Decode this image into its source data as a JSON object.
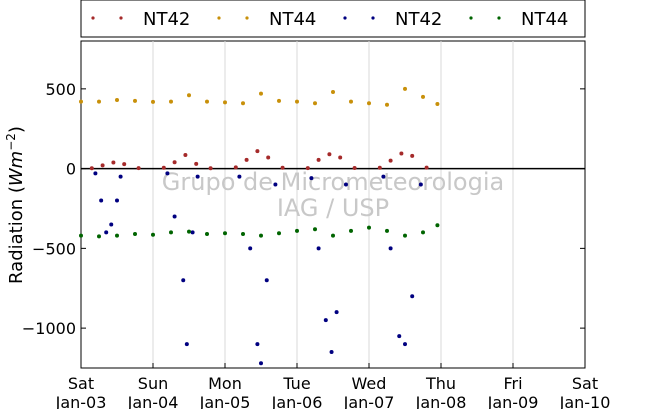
{
  "chart_data": {
    "type": "scatter",
    "title": "",
    "ylabel": "Radiation (Wm⁻²)",
    "ylabel_prefix": "Radiation (",
    "ylabel_unit": "Wm",
    "ylabel_exp": "−2",
    "ylabel_suffix": ")",
    "xlabel": "",
    "x_unit": "days",
    "xlim": [
      0,
      7
    ],
    "ylim": [
      -1250,
      800
    ],
    "yticks": [
      500,
      0,
      -500,
      -1000
    ],
    "ytick_labels": [
      "500",
      "0",
      "−500",
      "−1000"
    ],
    "xticks": [
      {
        "x": 0,
        "day": "Sat",
        "date": "Jan-03"
      },
      {
        "x": 1,
        "day": "Sun",
        "date": "Jan-04"
      },
      {
        "x": 2,
        "day": "Mon",
        "date": "Jan-05"
      },
      {
        "x": 3,
        "day": "Tue",
        "date": "Jan-06"
      },
      {
        "x": 4,
        "day": "Wed",
        "date": "Jan-07"
      },
      {
        "x": 5,
        "day": "Thu",
        "date": "Jan-08"
      },
      {
        "x": 6,
        "day": "Fri",
        "date": "Jan-09"
      },
      {
        "x": 7,
        "day": "Sat",
        "date": "Jan-10"
      }
    ],
    "grid": "vertical",
    "zero_line": true,
    "legend_position": "top",
    "watermark": [
      "Grupo de Micrometeorologia",
      "IAG / USP"
    ],
    "series": [
      {
        "name": "NT42",
        "color": "#a52a2a",
        "legend": true,
        "points": [
          [
            0.15,
            2
          ],
          [
            0.3,
            20
          ],
          [
            0.45,
            38
          ],
          [
            0.6,
            28
          ],
          [
            0.8,
            3
          ],
          [
            1.15,
            5
          ],
          [
            1.3,
            40
          ],
          [
            1.45,
            85
          ],
          [
            1.6,
            30
          ],
          [
            1.8,
            2
          ],
          [
            2.15,
            8
          ],
          [
            2.3,
            55
          ],
          [
            2.45,
            110
          ],
          [
            2.6,
            70
          ],
          [
            2.8,
            5
          ],
          [
            3.15,
            3
          ],
          [
            3.3,
            55
          ],
          [
            3.45,
            90
          ],
          [
            3.6,
            70
          ],
          [
            3.8,
            4
          ],
          [
            4.15,
            5
          ],
          [
            4.3,
            50
          ],
          [
            4.45,
            95
          ],
          [
            4.6,
            80
          ],
          [
            4.8,
            6
          ]
        ]
      },
      {
        "name": "NT44",
        "color": "#c8900a",
        "legend": true,
        "points": [
          [
            0,
            420
          ],
          [
            0.25,
            420
          ],
          [
            0.5,
            430
          ],
          [
            0.75,
            425
          ],
          [
            1,
            418
          ],
          [
            1.25,
            420
          ],
          [
            1.5,
            460
          ],
          [
            1.75,
            420
          ],
          [
            2,
            415
          ],
          [
            2.25,
            410
          ],
          [
            2.5,
            470
          ],
          [
            2.75,
            425
          ],
          [
            3,
            420
          ],
          [
            3.25,
            410
          ],
          [
            3.5,
            480
          ],
          [
            3.75,
            420
          ],
          [
            4,
            410
          ],
          [
            4.25,
            400
          ],
          [
            4.5,
            500
          ],
          [
            4.75,
            450
          ],
          [
            4.95,
            405
          ]
        ]
      },
      {
        "name": "NT42",
        "color": "#000080",
        "legend": true,
        "points": [
          [
            0.2,
            -30
          ],
          [
            0.28,
            -200
          ],
          [
            0.35,
            -400
          ],
          [
            0.42,
            -350
          ],
          [
            0.5,
            -200
          ],
          [
            0.55,
            -50
          ],
          [
            1.2,
            -30
          ],
          [
            1.3,
            -300
          ],
          [
            1.42,
            -700
          ],
          [
            1.47,
            -1100
          ],
          [
            1.55,
            -400
          ],
          [
            1.62,
            -50
          ],
          [
            2.2,
            -50
          ],
          [
            2.35,
            -500
          ],
          [
            2.45,
            -1100
          ],
          [
            2.5,
            -1220
          ],
          [
            2.58,
            -700
          ],
          [
            2.7,
            -100
          ],
          [
            3.2,
            -60
          ],
          [
            3.3,
            -500
          ],
          [
            3.4,
            -950
          ],
          [
            3.48,
            -1150
          ],
          [
            3.55,
            -900
          ],
          [
            3.68,
            -100
          ],
          [
            4.2,
            -50
          ],
          [
            4.3,
            -500
          ],
          [
            4.42,
            -1050
          ],
          [
            4.5,
            -1100
          ],
          [
            4.6,
            -800
          ],
          [
            4.72,
            -100
          ]
        ]
      },
      {
        "name": "NT44",
        "color": "#006400",
        "legend": true,
        "points": [
          [
            0,
            -420
          ],
          [
            0.25,
            -425
          ],
          [
            0.5,
            -420
          ],
          [
            0.75,
            -410
          ],
          [
            1,
            -415
          ],
          [
            1.25,
            -400
          ],
          [
            1.5,
            -395
          ],
          [
            1.75,
            -410
          ],
          [
            2,
            -405
          ],
          [
            2.25,
            -410
          ],
          [
            2.5,
            -420
          ],
          [
            2.75,
            -405
          ],
          [
            3,
            -390
          ],
          [
            3.25,
            -380
          ],
          [
            3.5,
            -420
          ],
          [
            3.75,
            -390
          ],
          [
            4,
            -370
          ],
          [
            4.25,
            -390
          ],
          [
            4.5,
            -420
          ],
          [
            4.75,
            -400
          ],
          [
            4.95,
            -355
          ]
        ]
      }
    ]
  }
}
